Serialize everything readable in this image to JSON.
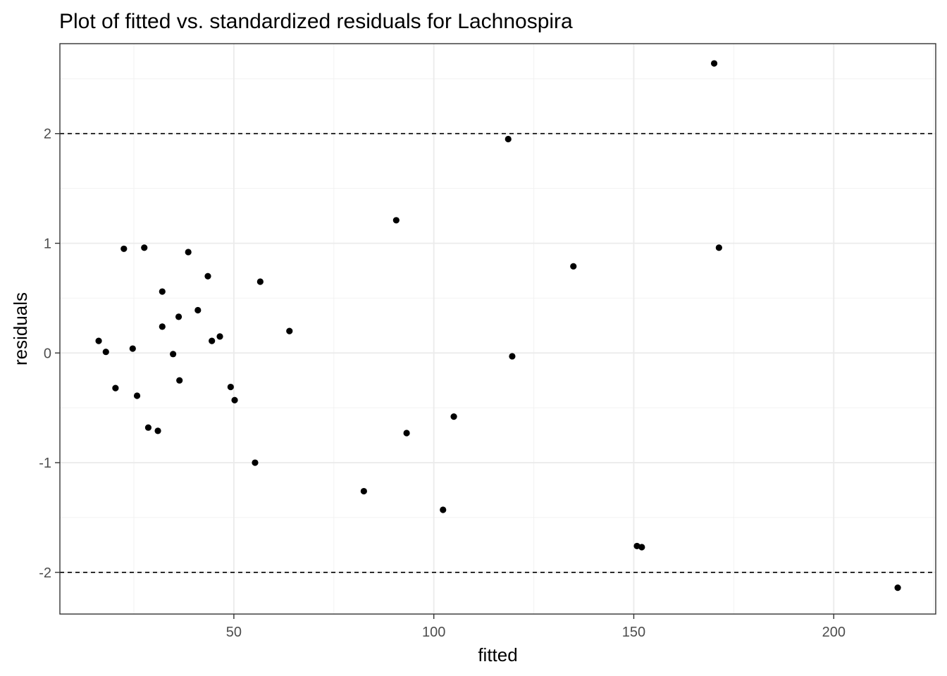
{
  "chart_data": {
    "type": "scatter",
    "title": "Plot of fitted vs. standardized residuals for Lachnospira",
    "xlabel": "fitted",
    "ylabel": "residuals",
    "xlim": [
      6.5,
      225.5
    ],
    "ylim": [
      -2.38,
      2.82
    ],
    "x_ticks": [
      50,
      100,
      150,
      200
    ],
    "x_tick_labels": [
      "50",
      "100",
      "150",
      "200"
    ],
    "y_ticks": [
      -2,
      -1,
      0,
      1,
      2
    ],
    "y_tick_labels": [
      "-2",
      "-1",
      "0",
      "1",
      "2"
    ],
    "x_minor": [
      25,
      75,
      125,
      175,
      225
    ],
    "y_minor": [
      -1.5,
      -0.5,
      0.5,
      1.5,
      2.5
    ],
    "reference_lines": [
      2,
      -2
    ],
    "grid": true,
    "colors": {
      "points": "#000000",
      "grid": "#ebebeb",
      "border": "#333333"
    },
    "points": [
      {
        "x": 16.2,
        "y": 0.11
      },
      {
        "x": 18.0,
        "y": 0.01
      },
      {
        "x": 20.4,
        "y": -0.32
      },
      {
        "x": 22.5,
        "y": 0.95
      },
      {
        "x": 24.7,
        "y": 0.04
      },
      {
        "x": 25.8,
        "y": -0.39
      },
      {
        "x": 27.6,
        "y": 0.96
      },
      {
        "x": 28.6,
        "y": -0.68
      },
      {
        "x": 31.0,
        "y": -0.71
      },
      {
        "x": 32.1,
        "y": 0.56
      },
      {
        "x": 32.1,
        "y": 0.24
      },
      {
        "x": 34.8,
        "y": -0.01
      },
      {
        "x": 36.2,
        "y": 0.33
      },
      {
        "x": 36.4,
        "y": -0.25
      },
      {
        "x": 38.6,
        "y": 0.92
      },
      {
        "x": 41.0,
        "y": 0.39
      },
      {
        "x": 43.5,
        "y": 0.7
      },
      {
        "x": 44.5,
        "y": 0.11
      },
      {
        "x": 46.5,
        "y": 0.15
      },
      {
        "x": 49.2,
        "y": -0.31
      },
      {
        "x": 50.2,
        "y": -0.43
      },
      {
        "x": 55.3,
        "y": -1.0
      },
      {
        "x": 56.6,
        "y": 0.65
      },
      {
        "x": 63.9,
        "y": 0.2
      },
      {
        "x": 82.5,
        "y": -1.26
      },
      {
        "x": 90.6,
        "y": 1.21
      },
      {
        "x": 93.2,
        "y": -0.73
      },
      {
        "x": 102.3,
        "y": -1.43
      },
      {
        "x": 105.0,
        "y": -0.58
      },
      {
        "x": 118.6,
        "y": 1.95
      },
      {
        "x": 119.6,
        "y": -0.03
      },
      {
        "x": 134.9,
        "y": 0.79
      },
      {
        "x": 150.8,
        "y": -1.76
      },
      {
        "x": 152.0,
        "y": -1.77
      },
      {
        "x": 170.1,
        "y": 2.64
      },
      {
        "x": 171.3,
        "y": 0.96
      },
      {
        "x": 216.0,
        "y": -2.14
      }
    ]
  }
}
